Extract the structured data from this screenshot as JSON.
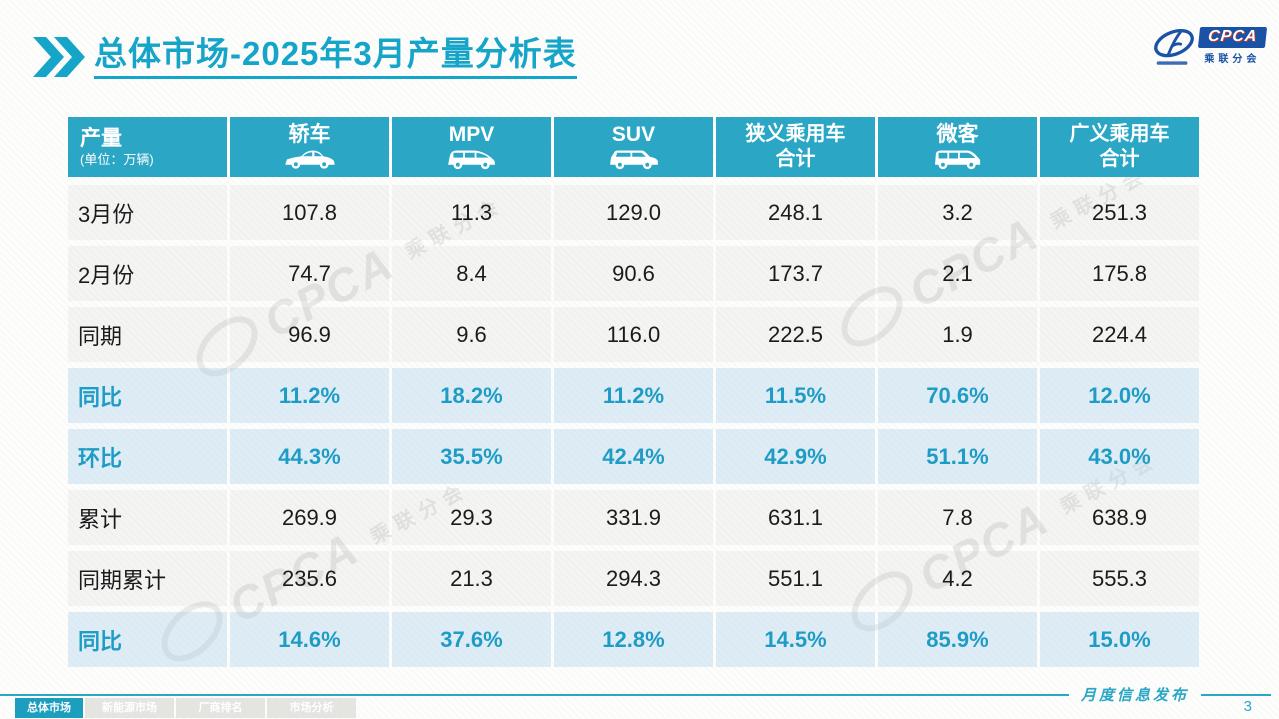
{
  "title": "总体市场-2025年3月产量分析表",
  "logo": {
    "cpca": "CPCA",
    "subtitle": "乘联分会"
  },
  "watermark": {
    "cpca": "CPCA",
    "sub": "乘联分会"
  },
  "table": {
    "header": {
      "col0_title": "产量",
      "col0_unit": "(单位：万辆)",
      "columns": [
        {
          "label": "轿车",
          "icon": "sedan-icon"
        },
        {
          "label": "MPV",
          "icon": "mpv-icon"
        },
        {
          "label": "SUV",
          "icon": "suv-icon"
        },
        {
          "line1": "狭义乘用车",
          "line2": "合计"
        },
        {
          "label": "微客",
          "icon": "microvan-icon"
        },
        {
          "line1": "广义乘用车",
          "line2": "合计"
        }
      ]
    },
    "rows": [
      {
        "label": "3月份",
        "type": "value",
        "values": [
          "107.8",
          "11.3",
          "129.0",
          "248.1",
          "3.2",
          "251.3"
        ]
      },
      {
        "label": "2月份",
        "type": "value",
        "values": [
          "74.7",
          "8.4",
          "90.6",
          "173.7",
          "2.1",
          "175.8"
        ]
      },
      {
        "label": "同期",
        "type": "value",
        "values": [
          "96.9",
          "9.6",
          "116.0",
          "222.5",
          "1.9",
          "224.4"
        ]
      },
      {
        "label": "同比",
        "type": "percent",
        "values": [
          "11.2%",
          "18.2%",
          "11.2%",
          "11.5%",
          "70.6%",
          "12.0%"
        ]
      },
      {
        "label": "环比",
        "type": "percent",
        "values": [
          "44.3%",
          "35.5%",
          "42.4%",
          "42.9%",
          "51.1%",
          "43.0%"
        ]
      },
      {
        "label": "累计",
        "type": "value",
        "values": [
          "269.9",
          "29.3",
          "331.9",
          "631.1",
          "7.8",
          "638.9"
        ]
      },
      {
        "label": "同期累计",
        "type": "value",
        "values": [
          "235.6",
          "21.3",
          "294.3",
          "551.1",
          "4.2",
          "555.3"
        ]
      },
      {
        "label": "同比",
        "type": "percent",
        "values": [
          "14.6%",
          "37.6%",
          "12.8%",
          "14.5%",
          "85.9%",
          "15.0%"
        ]
      }
    ]
  },
  "footer": {
    "tabs": [
      {
        "label": "总体市场",
        "active": true
      },
      {
        "label": "新能源市场",
        "active": false
      },
      {
        "label": "厂商排名",
        "active": false
      },
      {
        "label": "市场分析",
        "active": false
      }
    ],
    "publication": "月度信息发布",
    "page": "3"
  },
  "colors": {
    "title_teal": "#15A5C9",
    "header_bg": "#2BA7C5",
    "percent_text": "#1E9CC6",
    "percent_row_bg": "#E9F2F8",
    "value_row_bg": "#F5F5F3",
    "tab_active_bg": "#1C9EBF",
    "tab_inactive_bg": "#E4E4E1",
    "footer_teal": "#2AA7C5",
    "logo_blue": "#1A52A5"
  }
}
